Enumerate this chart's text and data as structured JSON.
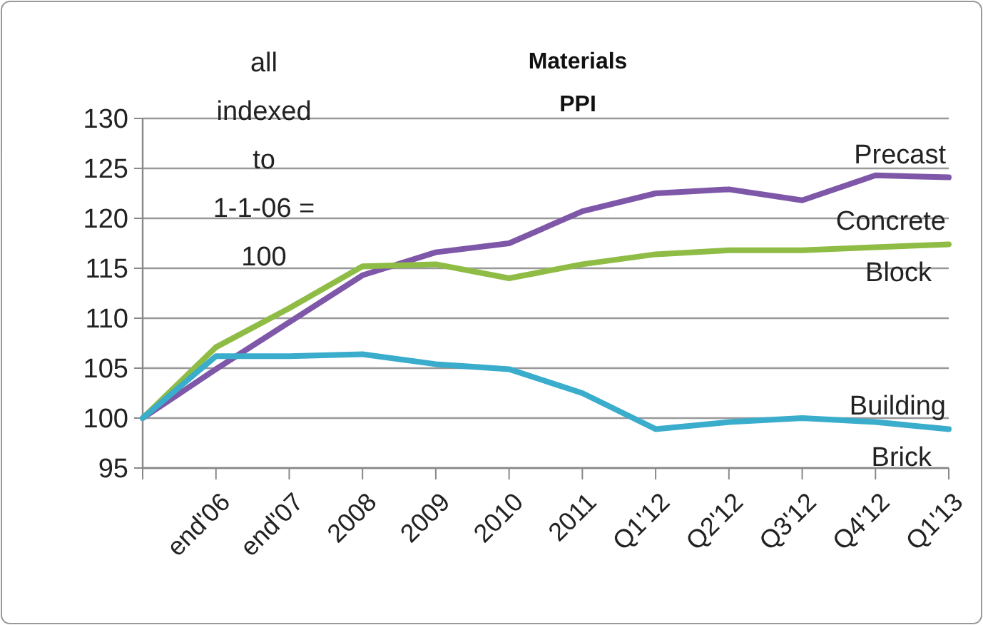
{
  "chart_data": {
    "type": "line",
    "title": "Materials\nPPI",
    "annotations": [
      "all\nindexed\nto\n1-1-06 =\n100"
    ],
    "categories": [
      null,
      "end'06",
      "end'07",
      "2008",
      "2009",
      "2010",
      "2011",
      "Q1'12",
      "Q2'12",
      "Q3'12",
      "Q4'12",
      "Q1'13"
    ],
    "series": [
      {
        "name": "Precast",
        "color": "#7e57a8",
        "values": [
          100,
          104.9,
          109.6,
          114.3,
          116.6,
          117.5,
          120.7,
          122.5,
          122.9,
          121.8,
          124.3,
          124.1
        ]
      },
      {
        "name": "Concrete Block",
        "color": "#8fbc45",
        "values": [
          100,
          107.1,
          111,
          115.2,
          115.4,
          114,
          115.4,
          116.4,
          116.8,
          116.8,
          117.1,
          117.4
        ]
      },
      {
        "name": "Building Brick",
        "color": "#3aaccc",
        "values": [
          100,
          106.2,
          106.2,
          106.4,
          105.4,
          104.9,
          102.5,
          98.9,
          99.6,
          100,
          99.6,
          98.9
        ]
      }
    ],
    "ylim": [
      95,
      130
    ],
    "yticks": [
      95,
      100,
      105,
      110,
      115,
      120,
      125,
      130
    ],
    "grid": "y"
  }
}
